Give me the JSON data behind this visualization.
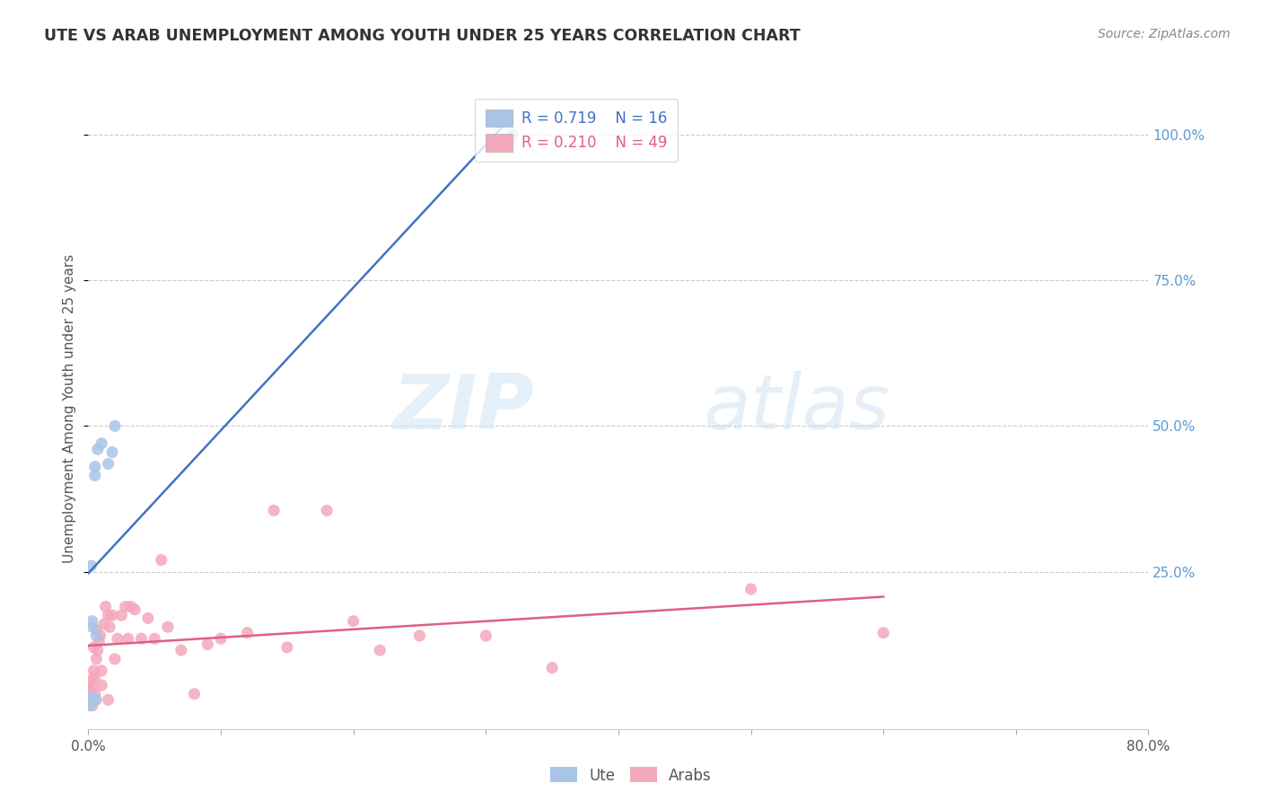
{
  "title": "UTE VS ARAB UNEMPLOYMENT AMONG YOUTH UNDER 25 YEARS CORRELATION CHART",
  "source": "Source: ZipAtlas.com",
  "ylabel": "Unemployment Among Youth under 25 years",
  "xlim": [
    0.0,
    0.8
  ],
  "ylim": [
    -0.02,
    1.08
  ],
  "xticks": [
    0.0,
    0.1,
    0.2,
    0.3,
    0.4,
    0.5,
    0.6,
    0.7,
    0.8
  ],
  "xticklabels": [
    "0.0%",
    "",
    "",
    "",
    "",
    "",
    "",
    "",
    "80.0%"
  ],
  "ytick_positions": [
    0.25,
    0.5,
    0.75,
    1.0
  ],
  "yticklabels": [
    "25.0%",
    "50.0%",
    "75.0%",
    "100.0%"
  ],
  "ute_color": "#a8c5e8",
  "arab_color": "#f4a8bc",
  "ute_line_color": "#4472c4",
  "arab_line_color": "#e06080",
  "R_ute": 0.719,
  "N_ute": 16,
  "R_arab": 0.21,
  "N_arab": 49,
  "legend_label_ute": "Ute",
  "legend_label_arab": "Arabs",
  "watermark_zip": "ZIP",
  "watermark_atlas": "atlas",
  "ute_x": [
    0.001,
    0.001,
    0.002,
    0.003,
    0.003,
    0.004,
    0.005,
    0.005,
    0.006,
    0.006,
    0.007,
    0.01,
    0.015,
    0.018,
    0.02,
    0.32
  ],
  "ute_y": [
    0.02,
    0.035,
    0.26,
    0.155,
    0.165,
    0.03,
    0.415,
    0.43,
    0.03,
    0.14,
    0.46,
    0.47,
    0.435,
    0.455,
    0.5,
    1.0
  ],
  "arab_x": [
    0.001,
    0.001,
    0.002,
    0.003,
    0.003,
    0.004,
    0.004,
    0.005,
    0.005,
    0.006,
    0.006,
    0.007,
    0.008,
    0.009,
    0.01,
    0.01,
    0.012,
    0.013,
    0.015,
    0.015,
    0.016,
    0.018,
    0.02,
    0.022,
    0.025,
    0.028,
    0.03,
    0.032,
    0.035,
    0.04,
    0.045,
    0.05,
    0.055,
    0.06,
    0.07,
    0.08,
    0.09,
    0.1,
    0.12,
    0.14,
    0.15,
    0.18,
    0.2,
    0.22,
    0.25,
    0.3,
    0.35,
    0.5,
    0.6
  ],
  "arab_y": [
    0.045,
    0.06,
    0.05,
    0.02,
    0.065,
    0.08,
    0.12,
    0.04,
    0.07,
    0.1,
    0.15,
    0.115,
    0.13,
    0.14,
    0.055,
    0.08,
    0.16,
    0.19,
    0.03,
    0.175,
    0.155,
    0.175,
    0.1,
    0.135,
    0.175,
    0.19,
    0.135,
    0.19,
    0.185,
    0.135,
    0.17,
    0.135,
    0.27,
    0.155,
    0.115,
    0.04,
    0.125,
    0.135,
    0.145,
    0.355,
    0.12,
    0.355,
    0.165,
    0.115,
    0.14,
    0.14,
    0.085,
    0.22,
    0.145
  ],
  "grid_color": "#cccccc",
  "tick_color": "#aaaaaa",
  "right_ytick_color": "#5b9bd5",
  "text_color": "#555555",
  "title_color": "#333333",
  "source_color": "#888888"
}
